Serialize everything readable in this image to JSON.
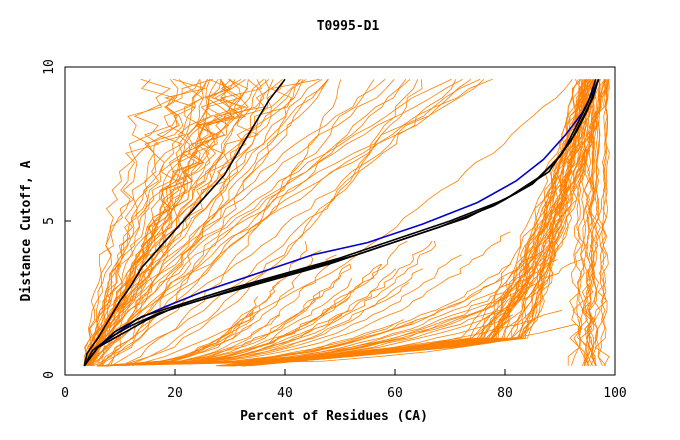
{
  "chart_data": {
    "type": "line",
    "title": "T0995-D1",
    "xlabel": "Percent of Residues (CA)",
    "ylabel": "Distance Cutoff, A",
    "xlim": [
      0,
      100
    ],
    "ylim": [
      0,
      10
    ],
    "x_ticks": [
      0,
      20,
      40,
      60,
      80,
      100
    ],
    "y_ticks": [
      0,
      5,
      10
    ],
    "grid": false,
    "legend": "none",
    "colors": {
      "other_models": "#ff8000",
      "highlight_a": "#000000",
      "highlight_b": "#0000cc",
      "frame": "#000000"
    },
    "series": [
      {
        "color": "#000000",
        "points": [
          [
            3.5,
            0.3
          ],
          [
            4,
            0.7
          ],
          [
            6,
            1.2
          ],
          [
            8,
            1.8
          ],
          [
            10,
            2.4
          ],
          [
            12,
            2.9
          ],
          [
            14,
            3.5
          ],
          [
            17,
            4.1
          ],
          [
            20,
            4.7
          ],
          [
            23,
            5.3
          ],
          [
            26,
            5.9
          ],
          [
            29,
            6.5
          ],
          [
            31,
            7.1
          ],
          [
            33,
            7.7
          ],
          [
            35,
            8.3
          ],
          [
            37,
            8.9
          ],
          [
            40,
            9.6
          ]
        ]
      },
      {
        "color": "#0000cc",
        "points": [
          [
            3.5,
            0.3
          ],
          [
            6,
            0.9
          ],
          [
            9,
            1.3
          ],
          [
            13,
            1.8
          ],
          [
            18,
            2.2
          ],
          [
            25,
            2.7
          ],
          [
            35,
            3.3
          ],
          [
            45,
            3.9
          ],
          [
            55,
            4.3
          ],
          [
            65,
            4.9
          ],
          [
            75,
            5.6
          ],
          [
            82,
            6.3
          ],
          [
            87,
            7.0
          ],
          [
            91,
            7.8
          ],
          [
            94,
            8.5
          ],
          [
            96,
            9.2
          ],
          [
            97,
            9.6
          ]
        ]
      },
      {
        "color": "#000000",
        "points": [
          [
            3.5,
            0.3
          ],
          [
            6,
            0.9
          ],
          [
            10,
            1.3
          ],
          [
            15,
            1.8
          ],
          [
            20,
            2.2
          ],
          [
            28,
            2.6
          ],
          [
            38,
            3.1
          ],
          [
            48,
            3.6
          ],
          [
            58,
            4.2
          ],
          [
            68,
            4.8
          ],
          [
            78,
            5.5
          ],
          [
            85,
            6.2
          ],
          [
            89,
            6.9
          ],
          [
            92,
            7.6
          ],
          [
            94,
            8.3
          ],
          [
            96,
            9.0
          ],
          [
            97,
            9.6
          ]
        ]
      },
      {
        "color": "#000000",
        "points": [
          [
            3.5,
            0.3
          ],
          [
            5,
            0.8
          ],
          [
            8,
            1.2
          ],
          [
            12,
            1.6
          ],
          [
            17,
            2.0
          ],
          [
            24,
            2.4
          ],
          [
            33,
            2.9
          ],
          [
            43,
            3.4
          ],
          [
            53,
            3.9
          ],
          [
            63,
            4.5
          ],
          [
            73,
            5.1
          ],
          [
            82,
            5.9
          ],
          [
            88,
            6.6
          ],
          [
            91,
            7.4
          ],
          [
            93,
            8.1
          ],
          [
            95,
            8.8
          ],
          [
            96.5,
            9.6
          ]
        ]
      },
      {
        "color": "#000000",
        "points": [
          [
            3.5,
            0.3
          ],
          [
            6,
            0.9
          ],
          [
            9,
            1.4
          ],
          [
            14,
            1.9
          ],
          [
            21,
            2.3
          ],
          [
            30,
            2.8
          ],
          [
            40,
            3.3
          ],
          [
            50,
            3.8
          ],
          [
            60,
            4.4
          ],
          [
            70,
            5.0
          ],
          [
            80,
            5.7
          ],
          [
            86,
            6.4
          ],
          [
            90,
            7.1
          ],
          [
            93,
            7.9
          ],
          [
            95,
            8.6
          ],
          [
            97,
            9.6
          ]
        ]
      }
    ]
  }
}
